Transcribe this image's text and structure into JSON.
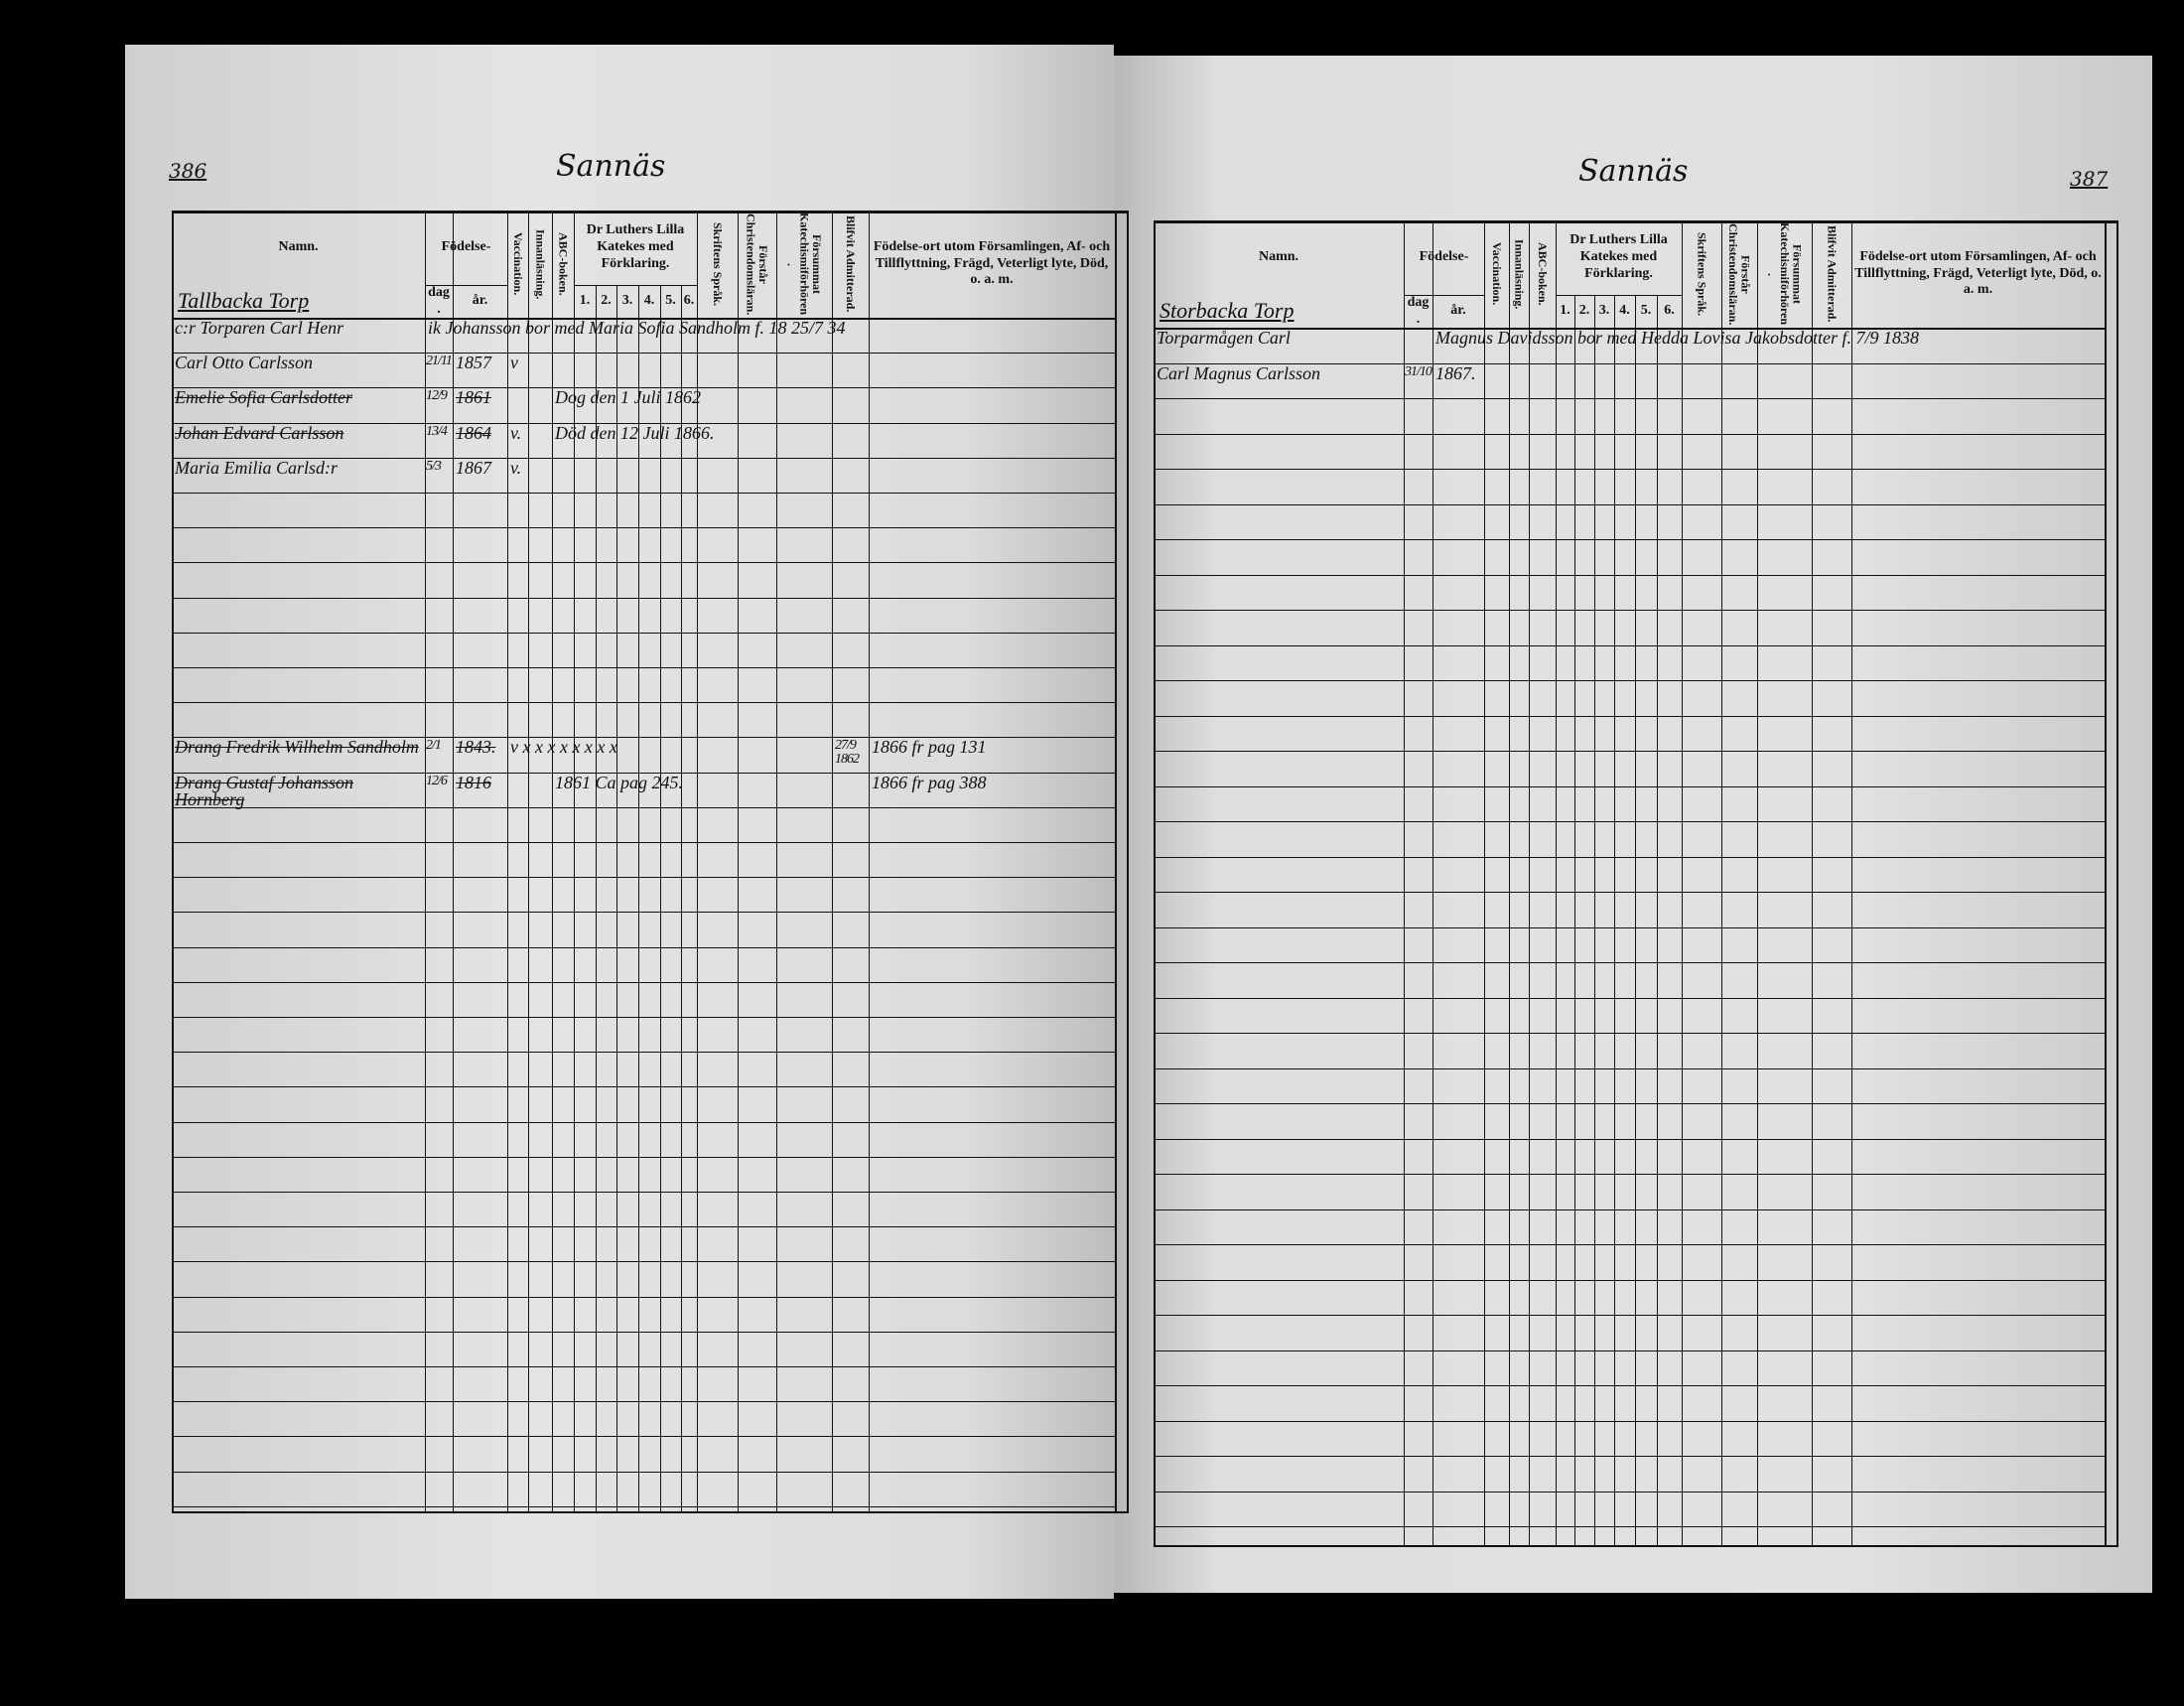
{
  "headers": {
    "namn": "Namn.",
    "fodelse": "Födelse-",
    "dag": "dag.",
    "ar": "år.",
    "vaccination": "Vaccination.",
    "innanlasning": "Innanläsning.",
    "abc": "ABC-boken.",
    "katekes": "Dr Luthers Lilla Katekes med Förklaring.",
    "kat_nums": [
      "1.",
      "2.",
      "3.",
      "4.",
      "5.",
      "6."
    ],
    "skrift": "Skriftens Språk.",
    "forstar": "Förstår Christendomsläran.",
    "forsummat": "Försummat Katechismiförhören.",
    "admitterad": "Blifvit Admitterad.",
    "fodelseort": "Födelse-ort utom Församlingen, Af- och Tillflyttning, Frägd, Veterligt lyte, Död, o. a. m."
  },
  "left": {
    "page_number": "386",
    "title": "Sannäs",
    "section": "Tallbacka Torp",
    "entries": [
      {
        "row": 1,
        "name": "c:r Torparen Carl Henr",
        "note": "ik Johansson bor med Maria Sofia Sandholm f. 18 25/7 34",
        "note_col": 1
      },
      {
        "row": 2,
        "name": "Carl Otto Carlsson",
        "dag": "21/11",
        "ar": "1857",
        "vacc": "v"
      },
      {
        "row": 3,
        "name": "Emelie Sofia Carlsdotter",
        "dag": "12/9",
        "ar": "1861",
        "note": "Dog den 1 Juli 1862",
        "note_col": 5,
        "struck": true
      },
      {
        "row": 4,
        "name": "Johan Edvard Carlsson",
        "dag": "13/4",
        "ar": "1864",
        "vacc": "v.",
        "note": "Död den 12 Juli 1866.",
        "note_col": 5,
        "struck": true
      },
      {
        "row": 5,
        "name": "Maria Emilia Carlsd:r",
        "dag": "5/3",
        "ar": "1867",
        "vacc": "v."
      },
      {
        "row": 13,
        "name": "Drang Fredrik Wilhelm Sandholm",
        "dag": "2/1",
        "ar": "1843.",
        "marks": "v  x  x  x  x  x  x  x  x",
        "admit": "27/9 1862",
        "ort": "1866 fr pag 131",
        "struck": true
      },
      {
        "row": 14,
        "name": "Drang Gustaf Johansson Hornberg",
        "dag": "12/6",
        "ar": "1816",
        "note": "1861 Ca pag 245.",
        "note_col": 5,
        "ort": "1866 fr pag 388",
        "struck": true
      }
    ]
  },
  "right": {
    "page_number": "387",
    "title": "Sannäs",
    "section": "Storbacka Torp",
    "entries": [
      {
        "row": 1,
        "name": "Torparmågen Carl",
        "note": "Magnus Davidsson bor med Hedda Lovisa Jakobsdotter f. 7/9 1838",
        "note_col": 2
      },
      {
        "row": 2,
        "name": "Carl Magnus Carlsson",
        "dag": "31/10",
        "ar": "1867."
      }
    ]
  }
}
